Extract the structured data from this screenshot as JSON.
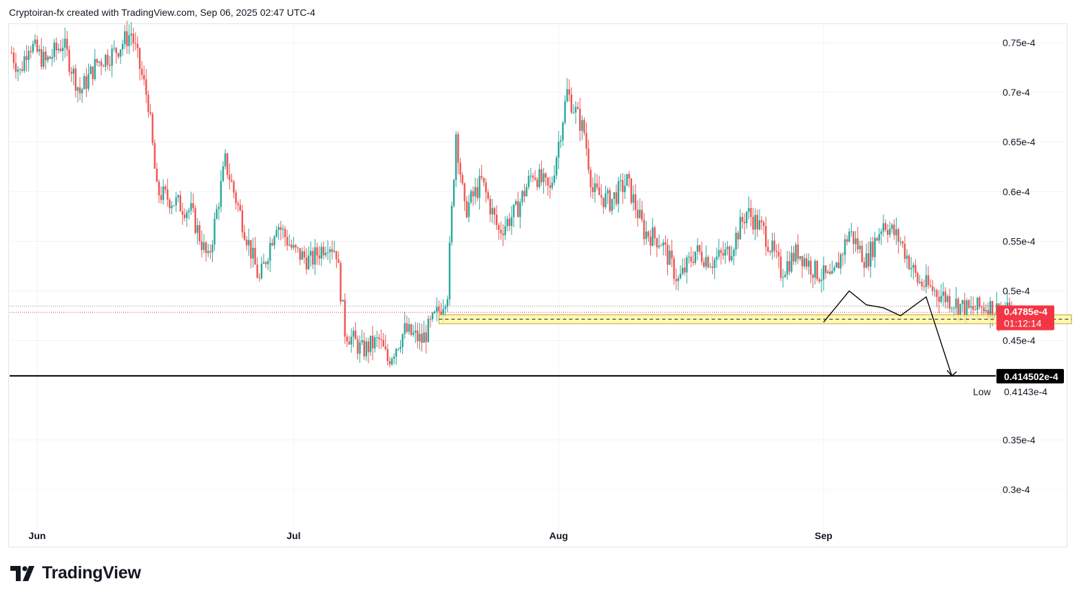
{
  "header": {
    "text": "Cryptoiran-fx created with TradingView.com, Sep 06, 2025 02:47 UTC-4"
  },
  "branding": {
    "logo_text": "TradingView"
  },
  "colors": {
    "up": "#26a69a",
    "down": "#ef5350",
    "price_tag": "#f23645",
    "zone_fill": "#fff59d",
    "zone_stroke": "#c9a227",
    "level_line": "#000000",
    "grid": "#f0f3fa"
  },
  "chart_data": {
    "type": "candlestick",
    "y_scale_unit": "1e-4",
    "ylim": [
      0.2,
      0.78
    ],
    "y_ticks": [
      {
        "value": 0.75,
        "label": "0.75e-4"
      },
      {
        "value": 0.7,
        "label": "0.7e-4"
      },
      {
        "value": 0.65,
        "label": "0.65e-4"
      },
      {
        "value": 0.6,
        "label": "0.6e-4"
      },
      {
        "value": 0.55,
        "label": "0.55e-4"
      },
      {
        "value": 0.5,
        "label": "0.5e-4"
      },
      {
        "value": 0.45,
        "label": "0.45e-4"
      },
      {
        "value": 0.35,
        "label": "0.35e-4"
      },
      {
        "value": 0.3,
        "label": "0.3e-4"
      }
    ],
    "x_ticks": [
      {
        "date": "2025-06-01",
        "label": "Jun"
      },
      {
        "date": "2025-07-01",
        "label": "Jul"
      },
      {
        "date": "2025-08-01",
        "label": "Aug"
      },
      {
        "date": "2025-09-01",
        "label": "Sep"
      }
    ],
    "x_range": [
      "2025-05-29",
      "2025-10-02"
    ],
    "price_path": [
      [
        "2025-05-29",
        0.74
      ],
      [
        "2025-05-30",
        0.72
      ],
      [
        "2025-05-31",
        0.75
      ],
      [
        "2025-06-02",
        0.73
      ],
      [
        "2025-06-04",
        0.75
      ],
      [
        "2025-06-06",
        0.7
      ],
      [
        "2025-06-08",
        0.73
      ],
      [
        "2025-06-10",
        0.74
      ],
      [
        "2025-06-12",
        0.76
      ],
      [
        "2025-06-14",
        0.69
      ],
      [
        "2025-06-15",
        0.6
      ],
      [
        "2025-06-17",
        0.59
      ],
      [
        "2025-06-19",
        0.58
      ],
      [
        "2025-06-21",
        0.53
      ],
      [
        "2025-06-23",
        0.63
      ],
      [
        "2025-06-25",
        0.57
      ],
      [
        "2025-06-27",
        0.51
      ],
      [
        "2025-06-29",
        0.57
      ],
      [
        "2025-07-01",
        0.54
      ],
      [
        "2025-07-03",
        0.53
      ],
      [
        "2025-07-05",
        0.55
      ],
      [
        "2025-07-06",
        0.54
      ],
      [
        "2025-07-07",
        0.46
      ],
      [
        "2025-07-09",
        0.44
      ],
      [
        "2025-07-11",
        0.45
      ],
      [
        "2025-07-12",
        0.43
      ],
      [
        "2025-07-14",
        0.46
      ],
      [
        "2025-07-16",
        0.45
      ],
      [
        "2025-07-18",
        0.48
      ],
      [
        "2025-07-19",
        0.5
      ],
      [
        "2025-07-20",
        0.66
      ],
      [
        "2025-07-21",
        0.58
      ],
      [
        "2025-07-23",
        0.61
      ],
      [
        "2025-07-25",
        0.56
      ],
      [
        "2025-07-27",
        0.58
      ],
      [
        "2025-07-29",
        0.62
      ],
      [
        "2025-07-31",
        0.6
      ],
      [
        "2025-08-02",
        0.7
      ],
      [
        "2025-08-04",
        0.66
      ],
      [
        "2025-08-05",
        0.6
      ],
      [
        "2025-08-07",
        0.59
      ],
      [
        "2025-08-09",
        0.61
      ],
      [
        "2025-08-11",
        0.56
      ],
      [
        "2025-08-13",
        0.55
      ],
      [
        "2025-08-15",
        0.51
      ],
      [
        "2025-08-17",
        0.54
      ],
      [
        "2025-08-19",
        0.53
      ],
      [
        "2025-08-21",
        0.54
      ],
      [
        "2025-08-23",
        0.58
      ],
      [
        "2025-08-25",
        0.56
      ],
      [
        "2025-08-27",
        0.52
      ],
      [
        "2025-08-29",
        0.54
      ],
      [
        "2025-08-31",
        0.52
      ],
      [
        "2025-09-02",
        0.51
      ],
      [
        "2025-09-04",
        0.56
      ],
      [
        "2025-09-06",
        0.53
      ],
      [
        "2025-09-08",
        0.57
      ],
      [
        "2025-09-10",
        0.55
      ],
      [
        "2025-09-12",
        0.51
      ],
      [
        "2025-09-14",
        0.5
      ],
      [
        "2025-09-16",
        0.49
      ],
      [
        "2025-09-18",
        0.48
      ],
      [
        "2025-09-20",
        0.485
      ],
      [
        "2025-09-22",
        0.479
      ],
      [
        "2025-09-23",
        0.4785
      ]
    ],
    "current_price": {
      "value": 0.4785,
      "label": "0.4785e-4",
      "countdown": "01:12:14"
    },
    "horizontal_level": {
      "value": 0.414502,
      "label": "0.414502e-4"
    },
    "low_marker": {
      "value": 0.4143,
      "tag": "Low",
      "label": "0.4143e-4"
    },
    "support_zone": {
      "from": "2025-07-18",
      "to": "2025-09-30",
      "low": 0.467,
      "high": 0.476,
      "mid": 0.4715
    },
    "annotation_path": [
      [
        "2025-09-01",
        0.4685
      ],
      [
        "2025-09-04",
        0.5
      ],
      [
        "2025-09-06",
        0.486
      ],
      [
        "2025-09-08",
        0.483
      ],
      [
        "2025-09-10",
        0.475
      ],
      [
        "2025-09-13",
        0.494
      ],
      [
        "2025-09-16",
        0.4145
      ]
    ]
  }
}
